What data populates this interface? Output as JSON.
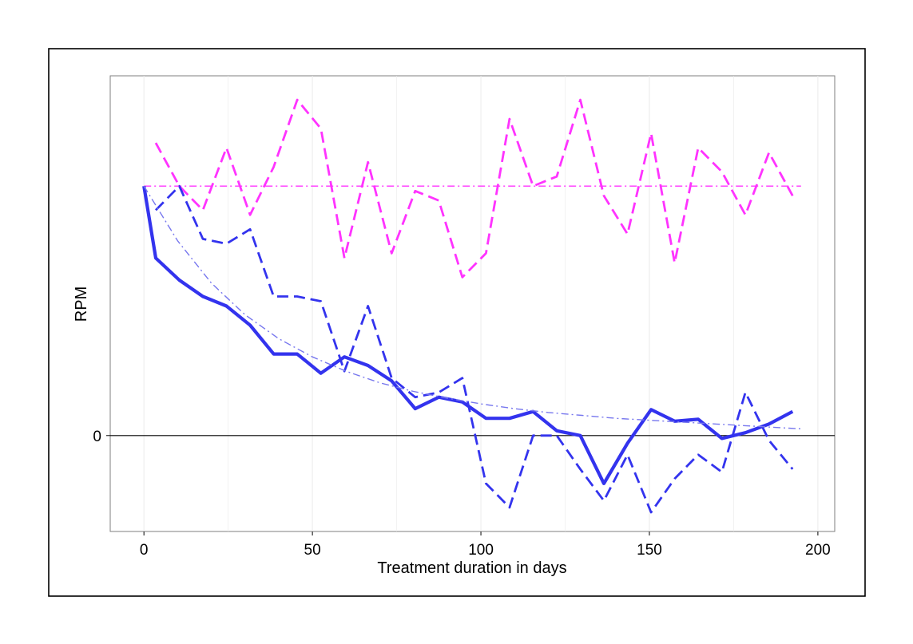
{
  "chart_data": {
    "type": "line",
    "title": "",
    "xlabel": "Treatment duration in days",
    "ylabel": "RPM",
    "xlim": [
      -10,
      205
    ],
    "ylim": [
      -1.0,
      3.75
    ],
    "x_ticks": [
      0,
      50,
      100,
      150,
      200
    ],
    "x_tick_labels": [
      "0",
      "50",
      "100",
      "150",
      "200"
    ],
    "y_ticks": [
      0
    ],
    "y_tick_labels": [
      "0"
    ],
    "grid": "vertical",
    "legend": "none",
    "reference_line": {
      "y": 0,
      "color": "#000000"
    },
    "series": [
      {
        "color": "#ff33ff",
        "dash": "dashed",
        "width": "medium",
        "x": [
          3.5,
          10.5,
          17.5,
          24.5,
          31.5,
          38.5,
          45.5,
          52.5,
          59.5,
          66.5,
          73.5,
          80.5,
          87.5,
          94.5,
          101.5,
          108.5,
          115.5,
          122.5,
          129.5,
          136.5,
          143.5,
          150.5,
          157.5,
          164.5,
          171.5,
          178.5,
          185.5,
          192.5
        ],
        "y": [
          3.05,
          2.6,
          2.35,
          3.0,
          2.3,
          2.8,
          3.5,
          3.2,
          1.85,
          2.85,
          1.9,
          2.55,
          2.45,
          1.65,
          1.9,
          3.3,
          2.6,
          2.7,
          3.5,
          2.5,
          2.1,
          3.15,
          1.8,
          3.0,
          2.75,
          2.3,
          2.95,
          2.5
        ]
      },
      {
        "color": "#ff33ff",
        "dash": "dashdot",
        "width": "thin",
        "x": [
          0,
          195
        ],
        "y": [
          2.6,
          2.6
        ]
      },
      {
        "color": "#3333ee",
        "dash": "solid",
        "width": "thick",
        "x": [
          0,
          3.5,
          10.5,
          17.5,
          24.5,
          31.5,
          38.5,
          45.5,
          52.5,
          59.5,
          66.5,
          73.5,
          80.5,
          87.5,
          94.5,
          101.5,
          108.5,
          115.5,
          122.5,
          129.5,
          136.5,
          143.5,
          150.5,
          157.5,
          164.5,
          171.5,
          178.5,
          185.5,
          192.5
        ],
        "y": [
          2.6,
          1.85,
          1.62,
          1.45,
          1.35,
          1.15,
          0.85,
          0.85,
          0.65,
          0.82,
          0.73,
          0.57,
          0.28,
          0.4,
          0.35,
          0.18,
          0.18,
          0.25,
          0.05,
          0.0,
          -0.5,
          -0.08,
          0.27,
          0.15,
          0.17,
          -0.03,
          0.03,
          0.12,
          0.25
        ]
      },
      {
        "color": "#3333ee",
        "dash": "dashed",
        "width": "medium",
        "x": [
          3.5,
          10.5,
          17.5,
          24.5,
          31.5,
          38.5,
          45.5,
          52.5,
          59.5,
          66.5,
          73.5,
          80.5,
          87.5,
          94.5,
          101.5,
          108.5,
          115.5,
          122.5,
          129.5,
          136.5,
          143.5,
          150.5,
          157.5,
          164.5,
          171.5,
          178.5,
          185.5,
          192.5
        ],
        "y": [
          2.35,
          2.6,
          2.05,
          2.0,
          2.15,
          1.45,
          1.45,
          1.4,
          0.67,
          1.35,
          0.6,
          0.4,
          0.45,
          0.6,
          -0.5,
          -0.75,
          0.0,
          0.0,
          -0.35,
          -0.68,
          -0.2,
          -0.8,
          -0.45,
          -0.2,
          -0.38,
          0.45,
          -0.05,
          -0.35
        ]
      },
      {
        "color": "#7777ee",
        "dash": "dashdot",
        "width": "thin",
        "x": [
          0,
          10,
          20,
          30,
          40,
          50,
          60,
          70,
          80,
          90,
          100,
          110,
          120,
          130,
          140,
          150,
          160,
          170,
          180,
          190,
          195
        ],
        "y": [
          2.6,
          2.03,
          1.59,
          1.26,
          1.01,
          0.82,
          0.67,
          0.55,
          0.46,
          0.39,
          0.33,
          0.28,
          0.24,
          0.21,
          0.18,
          0.16,
          0.14,
          0.12,
          0.1,
          0.08,
          0.07
        ]
      }
    ]
  }
}
